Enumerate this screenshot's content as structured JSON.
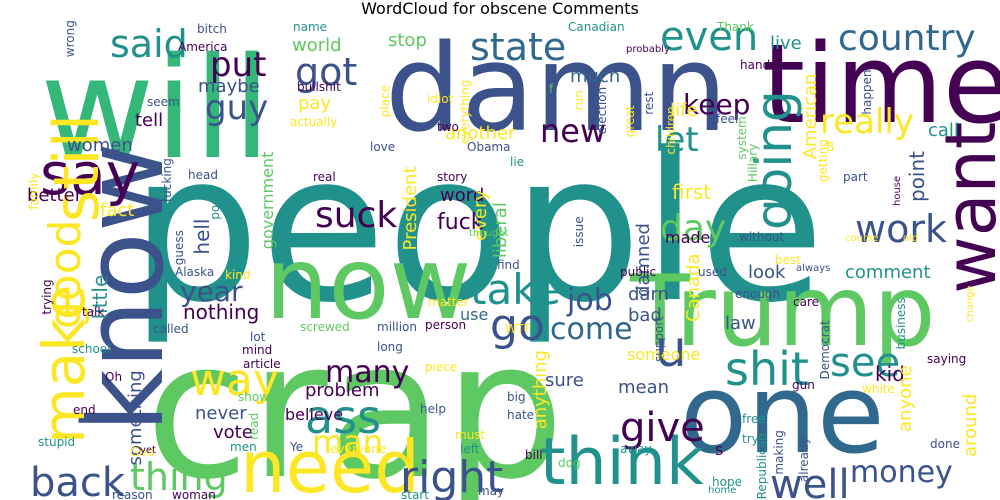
{
  "title": "WordCloud for obscene Comments",
  "palette": [
    "#440154",
    "#3b528b",
    "#21918c",
    "#5ec962",
    "#fde725"
  ],
  "words": [
    {
      "t": "people",
      "c": "#21918c"
    },
    {
      "t": "crap",
      "c": "#5ec962"
    },
    {
      "t": "will",
      "c": "#35b779"
    },
    {
      "t": "damn",
      "c": "#3b528b"
    },
    {
      "t": "time",
      "c": "#440154"
    },
    {
      "t": "Trump",
      "c": "#5ec962"
    },
    {
      "t": "know",
      "c": "#3b528b"
    },
    {
      "t": "now",
      "c": "#5ec962"
    },
    {
      "t": "one",
      "c": "#31688e"
    },
    {
      "t": "need",
      "c": "#fde725"
    },
    {
      "t": "think",
      "c": "#21918c"
    },
    {
      "t": "say",
      "c": "#440154"
    },
    {
      "t": "want",
      "c": "#440154"
    },
    {
      "t": "make",
      "c": "#fde725"
    },
    {
      "t": "country",
      "c": "#31688e"
    },
    {
      "t": "even",
      "c": "#21918c"
    },
    {
      "t": "said",
      "c": "#21918c"
    },
    {
      "t": "state",
      "c": "#31688e"
    },
    {
      "t": "got",
      "c": "#3b528b"
    },
    {
      "t": "put",
      "c": "#440154"
    },
    {
      "t": "guy",
      "c": "#3b528b"
    },
    {
      "t": "going",
      "c": "#21918c"
    },
    {
      "t": "really",
      "c": "#fde725"
    },
    {
      "t": "take",
      "c": "#21918c"
    },
    {
      "t": "go",
      "c": "#3b528b"
    },
    {
      "t": "way",
      "c": "#fde725"
    },
    {
      "t": "ass",
      "c": "#21918c"
    },
    {
      "t": "shit",
      "c": "#21918c"
    },
    {
      "t": "see",
      "c": "#21918c"
    },
    {
      "t": "right",
      "c": "#3b528b"
    },
    {
      "t": "back",
      "c": "#3b528b"
    },
    {
      "t": "thing",
      "c": "#5ec962"
    },
    {
      "t": "well",
      "c": "#3b528b"
    },
    {
      "t": "give",
      "c": "#440154"
    },
    {
      "t": "suck",
      "c": "#440154"
    },
    {
      "t": "work",
      "c": "#3b528b"
    },
    {
      "t": "day",
      "c": "#5ec962"
    },
    {
      "t": "year",
      "c": "#3b528b"
    },
    {
      "t": "good",
      "c": "#fde725"
    },
    {
      "t": "new",
      "c": "#440154"
    },
    {
      "t": "let",
      "c": "#21918c"
    },
    {
      "t": "keep",
      "c": "#440154"
    },
    {
      "t": "still",
      "c": "#fde725"
    },
    {
      "t": "money",
      "c": "#3b528b"
    },
    {
      "t": "come",
      "c": "#31688e"
    },
    {
      "t": "many",
      "c": "#440154"
    },
    {
      "t": "man",
      "c": "#fde725"
    },
    {
      "t": "job",
      "c": "#3b528b"
    },
    {
      "t": "u",
      "c": "#3b528b"
    },
    {
      "t": "world",
      "c": "#5ec962"
    },
    {
      "t": "maybe",
      "c": "#3b528b"
    },
    {
      "t": "pay",
      "c": "#fde725"
    },
    {
      "t": "tell",
      "c": "#440154"
    },
    {
      "t": "women",
      "c": "#3b528b"
    },
    {
      "t": "better",
      "c": "#440154"
    },
    {
      "t": "fact",
      "c": "#fde725"
    },
    {
      "t": "hell",
      "c": "#3b528b"
    },
    {
      "t": "fuck",
      "c": "#440154"
    },
    {
      "t": "word",
      "c": "#440154"
    },
    {
      "t": "first",
      "c": "#fde725"
    },
    {
      "t": "made",
      "c": "#440154"
    },
    {
      "t": "point",
      "c": "#3b528b"
    },
    {
      "t": "look",
      "c": "#3b528b"
    },
    {
      "t": "comment",
      "c": "#21918c"
    },
    {
      "t": "call",
      "c": "#21918c"
    },
    {
      "t": "live",
      "c": "#21918c"
    },
    {
      "t": "American",
      "c": "#fde725"
    },
    {
      "t": "nothing",
      "c": "#440154"
    },
    {
      "t": "another",
      "c": "#fde725"
    },
    {
      "t": "stop",
      "c": "#5ec962"
    },
    {
      "t": "much",
      "c": "#31688e"
    },
    {
      "t": "life",
      "c": "#fde725"
    },
    {
      "t": "problem",
      "c": "#440154"
    },
    {
      "t": "never",
      "c": "#3b528b"
    },
    {
      "t": "vote",
      "c": "#440154"
    },
    {
      "t": "believe",
      "c": "#440154"
    },
    {
      "t": "government",
      "c": "#5ec962"
    },
    {
      "t": "little",
      "c": "#21918c"
    },
    {
      "t": "something",
      "c": "#3b528b"
    },
    {
      "t": "President",
      "c": "#fde725"
    },
    {
      "t": "liberal",
      "c": "#5ec962"
    },
    {
      "t": "every",
      "c": "#fde725"
    },
    {
      "t": "anything",
      "c": "#fde725"
    },
    {
      "t": "use",
      "c": "#31688e"
    },
    {
      "t": "sure",
      "c": "#3b528b"
    },
    {
      "t": "mean",
      "c": "#3b528b"
    },
    {
      "t": "someone",
      "c": "#fde725"
    },
    {
      "t": "law",
      "c": "#3b528b"
    },
    {
      "t": "kid",
      "c": "#440154"
    },
    {
      "t": "bad",
      "c": "#3b528b"
    },
    {
      "t": "darn",
      "c": "#3b528b"
    },
    {
      "t": "damned",
      "c": "#3b528b"
    },
    {
      "t": "Canada",
      "c": "#fde725"
    },
    {
      "t": "anyone",
      "c": "#fde725"
    },
    {
      "t": "around",
      "c": "#fde725"
    },
    {
      "t": "s",
      "c": "#440154"
    },
    {
      "t": "hope",
      "c": "#21918c"
    },
    {
      "t": "bullshit",
      "c": "#440154"
    },
    {
      "t": "actually",
      "c": "#fde725"
    },
    {
      "t": "name",
      "c": "#21918c"
    },
    {
      "t": "America",
      "c": "#440154"
    },
    {
      "t": "bitch",
      "c": "#3b528b"
    },
    {
      "t": "wrong",
      "c": "#3b528b"
    },
    {
      "t": "seem",
      "c": "#3b528b"
    },
    {
      "t": "two",
      "c": "#440154"
    },
    {
      "t": "Obama",
      "c": "#3b528b"
    },
    {
      "t": "lie",
      "c": "#21918c"
    },
    {
      "t": "great",
      "c": "#fde725"
    },
    {
      "t": "rest",
      "c": "#3b528b"
    },
    {
      "t": "idiot",
      "c": "#fde725"
    },
    {
      "t": "place",
      "c": "#fde725"
    },
    {
      "t": "everything",
      "c": "#fde725"
    },
    {
      "t": "election",
      "c": "#3b528b"
    },
    {
      "t": "Thank",
      "c": "#5ec962"
    },
    {
      "t": "Canadian",
      "c": "#21918c"
    },
    {
      "t": "probably",
      "c": "#440154"
    },
    {
      "t": "hand",
      "c": "#440154"
    },
    {
      "t": "happen",
      "c": "#3b528b"
    },
    {
      "t": "children",
      "c": "#fde725"
    },
    {
      "t": "feel",
      "c": "#3b528b"
    },
    {
      "t": "system",
      "c": "#5ec962"
    },
    {
      "t": "Hillary",
      "c": "#5ec962"
    },
    {
      "t": "getting",
      "c": "#fde725"
    },
    {
      "t": "B",
      "c": "#fde725"
    },
    {
      "t": "part",
      "c": "#3b528b"
    },
    {
      "t": "house",
      "c": "#440154"
    },
    {
      "t": "course",
      "c": "#fde725"
    },
    {
      "t": "old",
      "c": "#fde725"
    },
    {
      "t": "thought",
      "c": "#5ec962"
    },
    {
      "t": "issue",
      "c": "#3b528b"
    },
    {
      "t": "without",
      "c": "#3b528b"
    },
    {
      "t": "best",
      "c": "#fde725"
    },
    {
      "t": "always",
      "c": "#3b528b"
    },
    {
      "t": "care",
      "c": "#440154"
    },
    {
      "t": "business",
      "c": "#21918c"
    },
    {
      "t": "Democrat",
      "c": "#3b528b"
    },
    {
      "t": "saying",
      "c": "#440154"
    },
    {
      "t": "white",
      "c": "#fde725"
    },
    {
      "t": "change",
      "c": "#fde725"
    },
    {
      "t": "gun",
      "c": "#440154"
    },
    {
      "t": "free",
      "c": "#21918c"
    },
    {
      "t": "try",
      "c": "#21918c"
    },
    {
      "t": "making",
      "c": "#3b528b"
    },
    {
      "t": "already",
      "c": "#3b528b"
    },
    {
      "t": "Republican",
      "c": "#21918c"
    },
    {
      "t": "done",
      "c": "#3b528b"
    },
    {
      "t": "home",
      "c": "#21918c"
    },
    {
      "t": "used",
      "c": "#3b528b"
    },
    {
      "t": "support",
      "c": "#3b528b"
    },
    {
      "t": "enough",
      "c": "#3b528b"
    },
    {
      "t": "public",
      "c": "#440154"
    },
    {
      "t": "find",
      "c": "#3b528b"
    },
    {
      "t": "matter",
      "c": "#fde725"
    },
    {
      "t": "WTF",
      "c": "#fde725"
    },
    {
      "t": "person",
      "c": "#440154"
    },
    {
      "t": "million",
      "c": "#3b528b"
    },
    {
      "t": "screwed",
      "c": "#5ec962"
    },
    {
      "t": "lot",
      "c": "#3b528b"
    },
    {
      "t": "mind",
      "c": "#440154"
    },
    {
      "t": "called",
      "c": "#3b528b"
    },
    {
      "t": "kind",
      "c": "#fde725"
    },
    {
      "t": "Alaska",
      "c": "#3b528b"
    },
    {
      "t": "talk",
      "c": "#440154"
    },
    {
      "t": "school",
      "c": "#21918c"
    },
    {
      "t": "long",
      "c": "#3b528b"
    },
    {
      "t": "article",
      "c": "#440154"
    },
    {
      "t": "piece",
      "c": "#fde725"
    },
    {
      "t": "show",
      "c": "#5ec962"
    },
    {
      "t": "read",
      "c": "#5ec962"
    },
    {
      "t": "help",
      "c": "#3b528b"
    },
    {
      "t": "hate",
      "c": "#3b528b"
    },
    {
      "t": "big",
      "c": "#3b528b"
    },
    {
      "t": "must",
      "c": "#fde725"
    },
    {
      "t": "left",
      "c": "#21918c"
    },
    {
      "t": "bill",
      "c": "#440154"
    },
    {
      "t": "dog",
      "c": "#5ec962"
    },
    {
      "t": "away",
      "c": "#21918c"
    },
    {
      "t": "start",
      "c": "#21918c"
    },
    {
      "t": "may",
      "c": "#3b528b"
    },
    {
      "t": "reason",
      "c": "#3b528b"
    },
    {
      "t": "woman",
      "c": "#440154"
    },
    {
      "t": "everyone",
      "c": "#fde725"
    },
    {
      "t": "men",
      "c": "#21918c"
    },
    {
      "t": "Ye",
      "c": "#3b528b"
    },
    {
      "t": "God",
      "c": "#fde725"
    },
    {
      "t": "yet",
      "c": "#440154"
    },
    {
      "t": "stupid",
      "c": "#21918c"
    },
    {
      "t": "end",
      "c": "#440154"
    },
    {
      "t": "Oh",
      "c": "#440154"
    },
    {
      "t": "family",
      "c": "#fde725"
    },
    {
      "t": "trying",
      "c": "#440154"
    },
    {
      "t": "guess",
      "c": "#3b528b"
    },
    {
      "t": "fucking",
      "c": "#3b528b"
    },
    {
      "t": "post",
      "c": "#21918c"
    },
    {
      "t": "head",
      "c": "#3b528b"
    },
    {
      "t": "real",
      "c": "#440154"
    },
    {
      "t": "story",
      "c": "#440154"
    },
    {
      "t": "love",
      "c": "#3b528b"
    },
    {
      "t": "run",
      "c": "#fde725"
    },
    {
      "t": "f",
      "c": "#5ec962"
    }
  ]
}
